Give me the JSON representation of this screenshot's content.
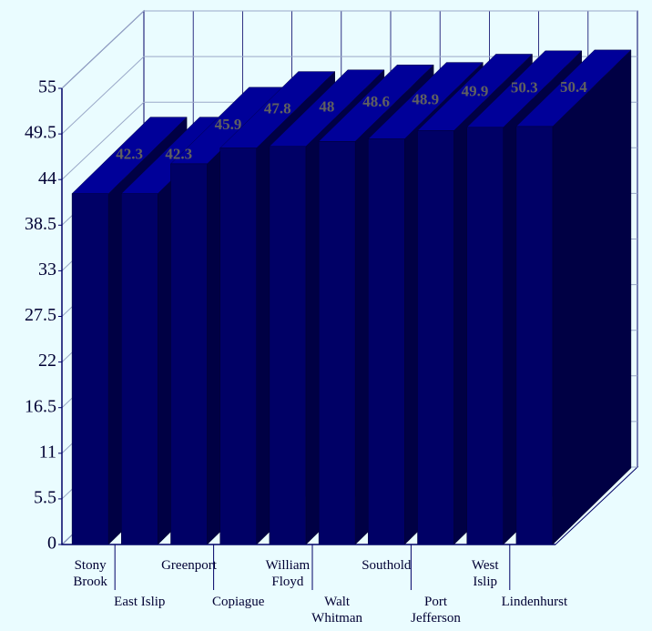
{
  "chart_data": {
    "type": "bar3d",
    "categories": [
      "Stony\nBrook",
      "East Islip",
      "Greenport",
      "Copiague",
      "William\nFloyd",
      "Walt\nWhitman",
      "Southold",
      "Port\nJefferson",
      "West\nIslip",
      "Lindenhurst"
    ],
    "values": [
      42.3,
      42.3,
      45.9,
      47.8,
      48,
      48.6,
      48.9,
      49.9,
      50.3,
      50.4
    ],
    "color": "#000066",
    "ylim": [
      0,
      55
    ],
    "yticks": [
      0,
      5.5,
      11,
      16.5,
      22,
      27.5,
      33,
      38.5,
      44,
      49.5,
      55
    ],
    "grid": true
  }
}
